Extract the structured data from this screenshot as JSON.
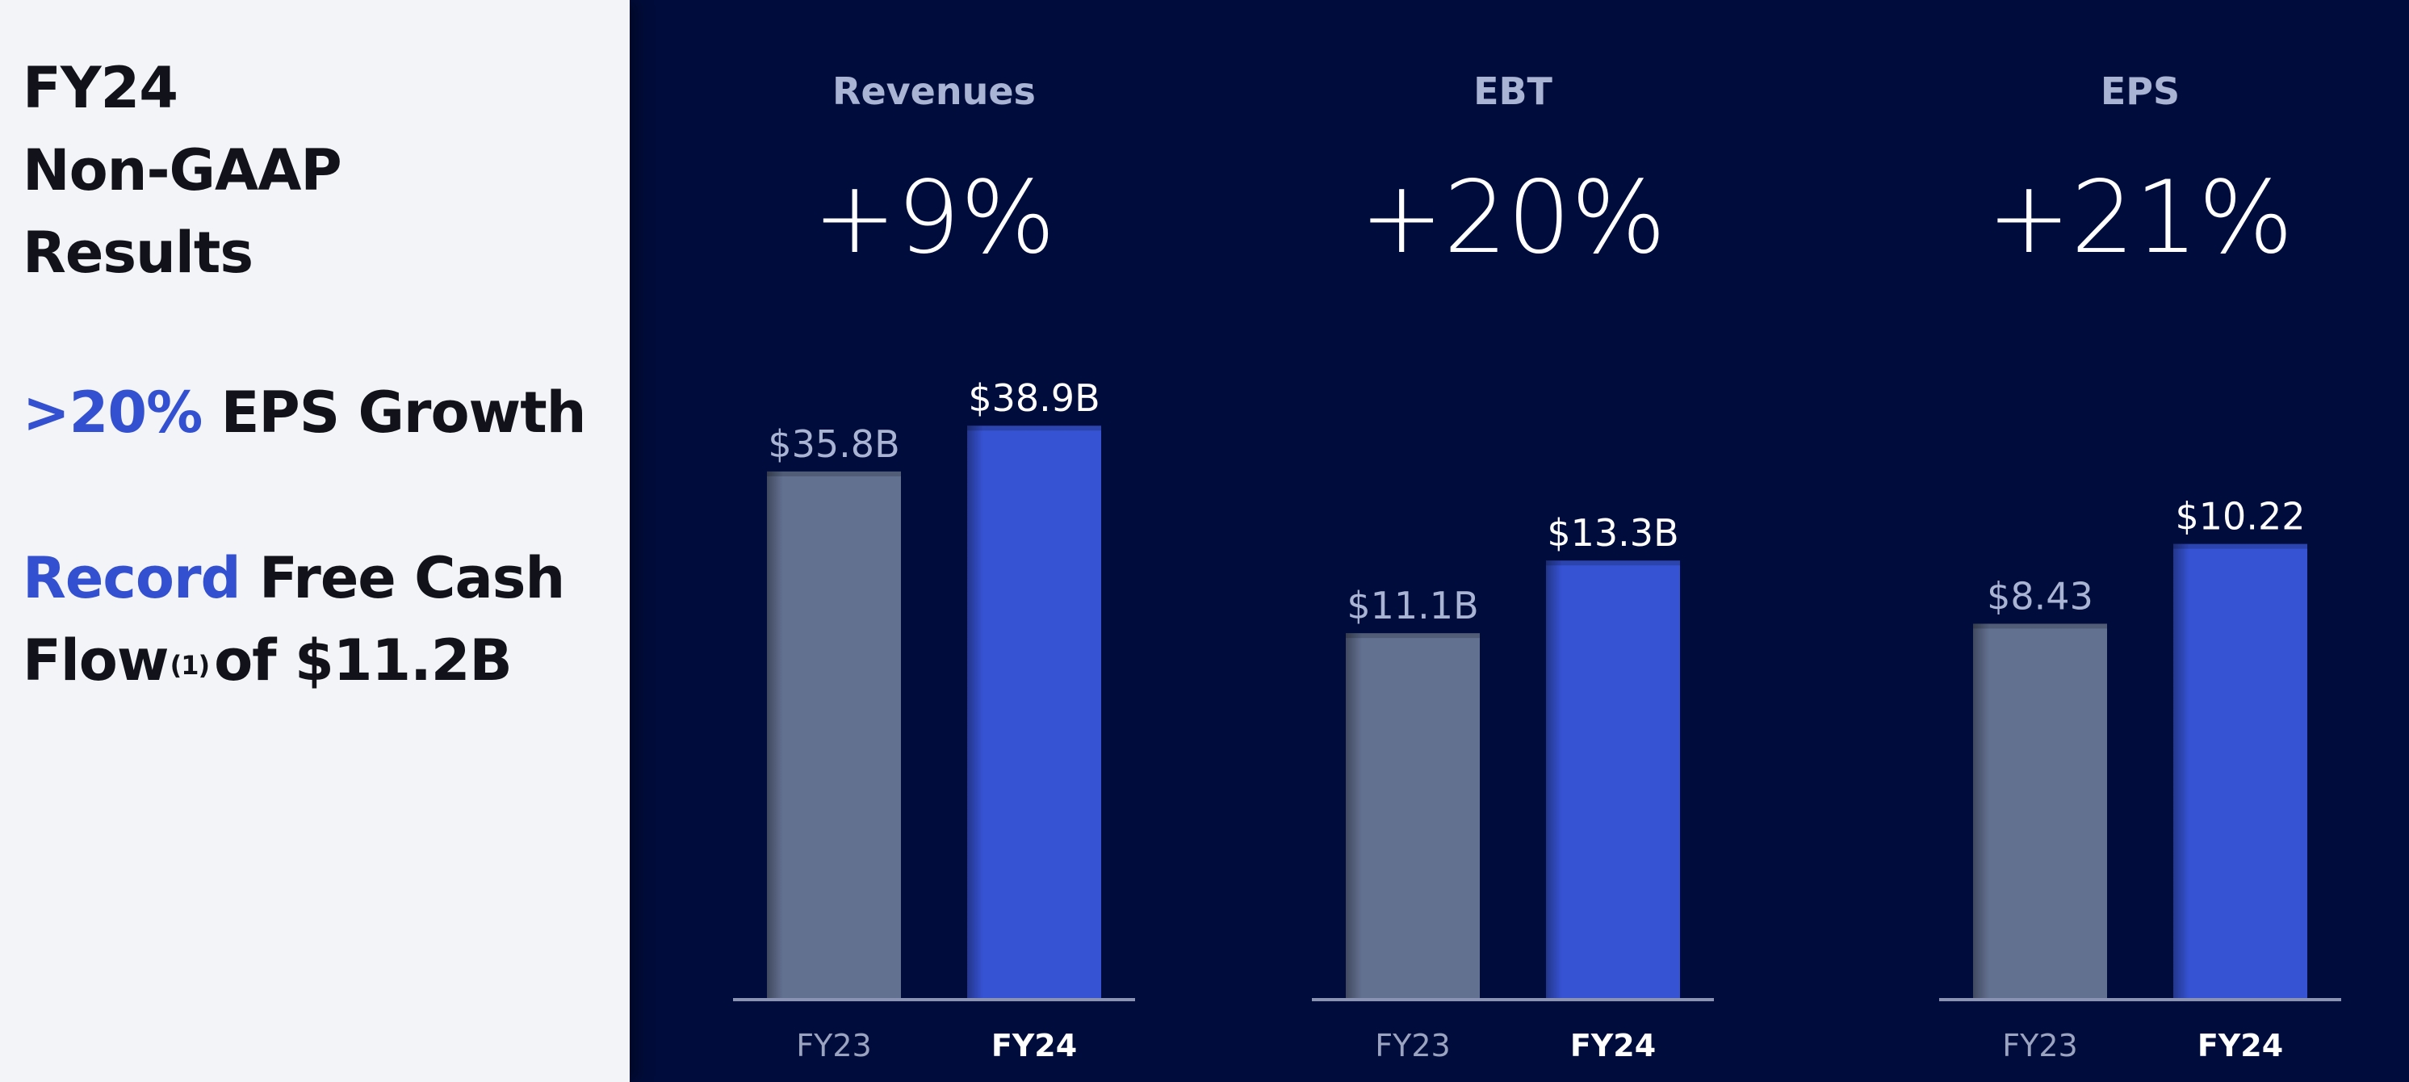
{
  "left_panel": {
    "title_lines": [
      "FY24",
      "Non-GAAP",
      "Results"
    ],
    "eps_highlight": ">20%",
    "eps_text": " EPS Growth",
    "fcf_highlight": "Record",
    "fcf_text_1": " Free Cash",
    "fcf_text_2a": "Flow",
    "fcf_footnote": "(1)",
    "fcf_text_2b": "of $11.2B"
  },
  "colors": {
    "background": "#000c3b",
    "left_panel": "#f3f4f7",
    "accent": "#3350d0",
    "bar_prev": "#637191",
    "bar_curr": "#3653d4",
    "axis": "#8a93b3"
  },
  "chart_data": [
    {
      "type": "bar",
      "title": "Revenues",
      "growth": "+9%",
      "categories": [
        "FY23",
        "FY24"
      ],
      "values": [
        35.8,
        38.9
      ],
      "value_labels": [
        "$35.8B",
        "$38.9B"
      ],
      "unit": "B",
      "ylim": [
        0,
        40.5
      ]
    },
    {
      "type": "bar",
      "title": "EBT",
      "growth": "+20%",
      "categories": [
        "FY23",
        "FY24"
      ],
      "values": [
        11.1,
        13.3
      ],
      "value_labels": [
        "$11.1B",
        "$13.3B"
      ],
      "unit": "B",
      "ylim": [
        0,
        18.1
      ]
    },
    {
      "type": "bar",
      "title": "EPS",
      "growth": "+21%",
      "categories": [
        "FY23",
        "FY24"
      ],
      "values": [
        8.43,
        10.22
      ],
      "value_labels": [
        "$8.43",
        "$10.22"
      ],
      "unit": "$",
      "ylim": [
        0,
        13.4
      ]
    }
  ]
}
